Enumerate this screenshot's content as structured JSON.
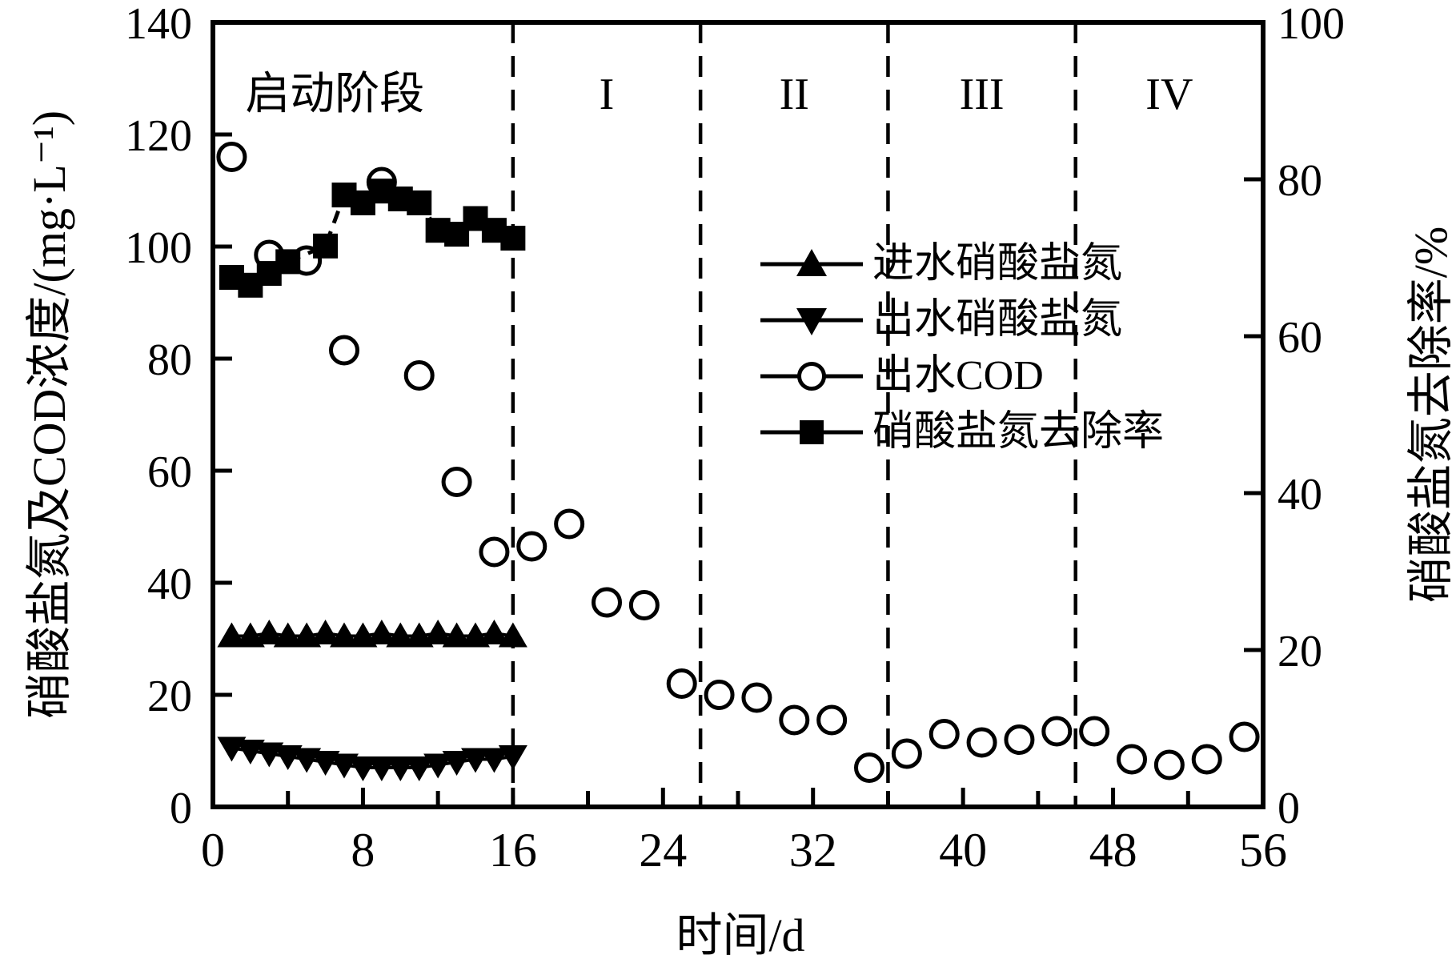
{
  "page": {
    "background": "#ffffff",
    "ink": "#000000"
  },
  "chart_data": {
    "type": "scatter",
    "title": "",
    "xlabel": "时间/d",
    "ylabel_left": "硝酸盐氮及COD浓度/(mg·L⁻¹)",
    "ylabel_right": "硝酸盐氮去除率/%",
    "xlim": [
      0,
      56
    ],
    "ylim_left": [
      0,
      140
    ],
    "ylim_right": [
      0,
      100
    ],
    "grid": false,
    "x_major_ticks": [
      0,
      8,
      16,
      24,
      32,
      40,
      48,
      56
    ],
    "x_minor_ticks": [
      4,
      12,
      20,
      28,
      36,
      44,
      52
    ],
    "y_left_ticks": [
      0,
      20,
      40,
      60,
      80,
      100,
      120,
      140
    ],
    "y_right_ticks": [
      0,
      20,
      40,
      60,
      80,
      100
    ],
    "phase_boundaries_x": [
      16,
      26,
      36,
      46
    ],
    "phase_labels": [
      {
        "text": "启动阶段",
        "x": 6.5
      },
      {
        "text": "I",
        "x": 21
      },
      {
        "text": "II",
        "x": 31
      },
      {
        "text": "III",
        "x": 41
      },
      {
        "text": "IV",
        "x": 51
      }
    ],
    "legend": {
      "position": "center-right",
      "entries": [
        "进水硝酸盐氮",
        "出水硝酸盐氮",
        "出水COD",
        "硝酸盐氮去除率"
      ]
    },
    "series": [
      {
        "name": "进水硝酸盐氮",
        "marker": "triangle-up",
        "axis": "left",
        "connected": true,
        "line_style": "solid",
        "color": "#000000",
        "points": [
          [
            1,
            30.5
          ],
          [
            2,
            30.5
          ],
          [
            3,
            31
          ],
          [
            4,
            30.5
          ],
          [
            5,
            30.5
          ],
          [
            6,
            31
          ],
          [
            7,
            30.5
          ],
          [
            8,
            30.5
          ],
          [
            9,
            31
          ],
          [
            10,
            30.5
          ],
          [
            11,
            30.5
          ],
          [
            12,
            31
          ],
          [
            13,
            30.5
          ],
          [
            14,
            30.5
          ],
          [
            15,
            31
          ],
          [
            16,
            30.5
          ]
        ]
      },
      {
        "name": "出水硝酸盐氮",
        "marker": "triangle-down",
        "axis": "left",
        "connected": true,
        "line_style": "solid",
        "color": "#000000",
        "points": [
          [
            1,
            10.5
          ],
          [
            2,
            10
          ],
          [
            3,
            9.5
          ],
          [
            4,
            9
          ],
          [
            5,
            8.5
          ],
          [
            6,
            8
          ],
          [
            7,
            7.5
          ],
          [
            8,
            7
          ],
          [
            9,
            7
          ],
          [
            10,
            7
          ],
          [
            11,
            7
          ],
          [
            12,
            7.5
          ],
          [
            13,
            8
          ],
          [
            14,
            8.5
          ],
          [
            15,
            8.5
          ],
          [
            16,
            9
          ]
        ]
      },
      {
        "name": "出水COD",
        "marker": "circle-open",
        "axis": "left",
        "connected": false,
        "line_style": "none",
        "color": "#000000",
        "points": [
          [
            1,
            116
          ],
          [
            3,
            98.5
          ],
          [
            5,
            97.5
          ],
          [
            7,
            81.5
          ],
          [
            9,
            111.5
          ],
          [
            11,
            77
          ],
          [
            13,
            58
          ],
          [
            15,
            45.5
          ],
          [
            17,
            46.5
          ],
          [
            19,
            50.5
          ],
          [
            21,
            36.5
          ],
          [
            23,
            36
          ],
          [
            25,
            22
          ],
          [
            27,
            20
          ],
          [
            29,
            19.5
          ],
          [
            31,
            15.5
          ],
          [
            33,
            15.5
          ],
          [
            35,
            7
          ],
          [
            37,
            9.5
          ],
          [
            39,
            13
          ],
          [
            41,
            11.5
          ],
          [
            43,
            12
          ],
          [
            45,
            13.5
          ],
          [
            47,
            13.5
          ],
          [
            49,
            8.5
          ],
          [
            51,
            7.5
          ],
          [
            53,
            8.5
          ],
          [
            55,
            12.5
          ]
        ]
      },
      {
        "name": "硝酸盐氮去除率",
        "marker": "square",
        "axis": "right",
        "connected": true,
        "line_style": "dashed",
        "color": "#000000",
        "points": [
          [
            1,
            67.5
          ],
          [
            2,
            66.5
          ],
          [
            3,
            68
          ],
          [
            4,
            69.5
          ],
          [
            6,
            71.5
          ],
          [
            7,
            78
          ],
          [
            8,
            77
          ],
          [
            9,
            78.5
          ],
          [
            10,
            77.5
          ],
          [
            11,
            77
          ],
          [
            12,
            73.5
          ],
          [
            13,
            73
          ],
          [
            14,
            75
          ],
          [
            15,
            73.5
          ],
          [
            16,
            72.5
          ]
        ]
      }
    ]
  }
}
